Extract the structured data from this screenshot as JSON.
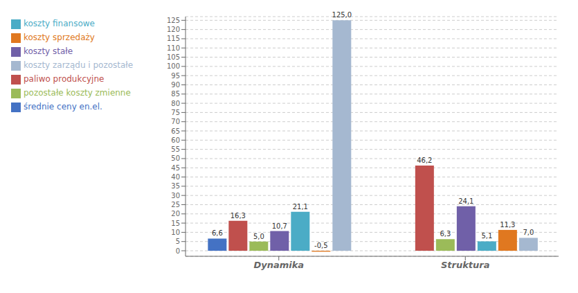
{
  "chart_data": {
    "type": "bar",
    "categories": [
      "Dynamika",
      "Struktura"
    ],
    "series": [
      {
        "name": "średnie ceny en.el.",
        "color": "#4472c4",
        "values": [
          6.6,
          null
        ],
        "value_labels": [
          "6,6",
          null
        ]
      },
      {
        "name": "paliwo produkcyjne",
        "color": "#c0504d",
        "values": [
          16.3,
          46.2
        ],
        "value_labels": [
          "16,3",
          "46,2"
        ]
      },
      {
        "name": "pozostałe koszty zmienne",
        "color": "#9bbb59",
        "values": [
          5.0,
          6.3
        ],
        "value_labels": [
          "5,0",
          "6,3"
        ]
      },
      {
        "name": "koszty stałe",
        "color": "#7060a8",
        "values": [
          10.7,
          24.1
        ],
        "value_labels": [
          "10,7",
          "24,1"
        ]
      },
      {
        "name": "koszty finansowe",
        "color": "#4bacc6",
        "values": [
          21.1,
          5.1
        ],
        "value_labels": [
          "21,1",
          "5,1"
        ]
      },
      {
        "name": "koszty sprzedaży",
        "color": "#e07820",
        "values": [
          -0.5,
          11.3
        ],
        "value_labels": [
          "-0,5",
          "11,3"
        ]
      },
      {
        "name": "koszty zarządu i pozostałe",
        "color": "#a5b8d0",
        "values": [
          125.0,
          7.0
        ],
        "value_labels": [
          "125,0",
          "7,0"
        ]
      }
    ],
    "ylim": [
      -3,
      127
    ],
    "yticks": [
      0,
      5,
      10,
      15,
      20,
      25,
      30,
      35,
      40,
      45,
      50,
      55,
      60,
      65,
      70,
      75,
      80,
      85,
      90,
      95,
      100,
      105,
      110,
      115,
      120,
      125
    ],
    "grid": true,
    "legend": "upper left",
    "data_labels": true
  }
}
